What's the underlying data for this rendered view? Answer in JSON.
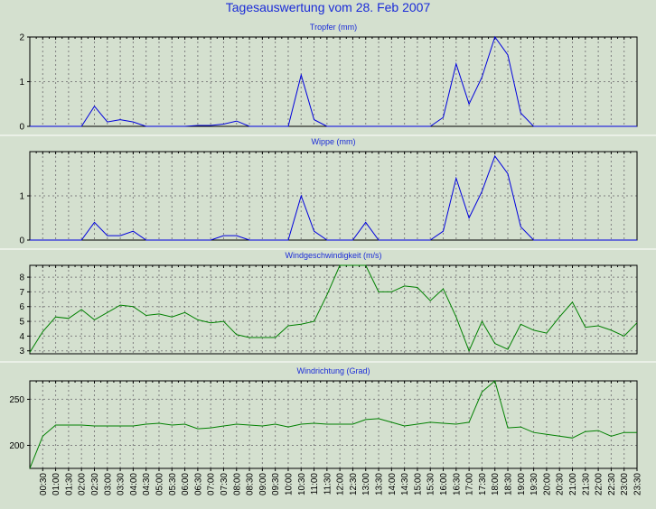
{
  "title": "Tagesauswertung vom 28. Feb 2007",
  "colors": {
    "background": "#d4e0cf",
    "plot_background": "#d4e0cf",
    "title": "#1a2bd8",
    "blue_series": "#0000dd",
    "green_series": "#008000",
    "grid": "#808080",
    "separator": "#ffffff"
  },
  "time_labels": [
    "00:30",
    "01:00",
    "01:30",
    "02:00",
    "02:30",
    "03:00",
    "03:30",
    "04:00",
    "04:30",
    "05:00",
    "05:30",
    "06:00",
    "06:30",
    "07:00",
    "07:30",
    "08:00",
    "08:30",
    "09:00",
    "09:30",
    "10:00",
    "10:30",
    "11:00",
    "11:30",
    "12:00",
    "12:30",
    "13:00",
    "13:30",
    "14:00",
    "14:30",
    "15:00",
    "15:30",
    "16:00",
    "16:30",
    "17:00",
    "17:30",
    "18:00",
    "18:30",
    "19:00",
    "19:30",
    "20:00",
    "20:30",
    "21:00",
    "21:30",
    "22:00",
    "22:30",
    "23:00",
    "23:30"
  ],
  "chart_data": [
    {
      "type": "line",
      "title": "Tropfer (mm)",
      "ylim": [
        0,
        2
      ],
      "yticks": [
        0,
        1,
        2
      ],
      "grid": true,
      "x": [
        "00:00",
        "00:30",
        "01:00",
        "01:30",
        "02:00",
        "02:30",
        "03:00",
        "03:30",
        "04:00",
        "04:30",
        "05:00",
        "05:30",
        "06:00",
        "06:30",
        "07:00",
        "07:30",
        "08:00",
        "08:30",
        "09:00",
        "09:30",
        "10:00",
        "10:30",
        "11:00",
        "11:30",
        "12:00",
        "12:30",
        "13:00",
        "13:30",
        "14:00",
        "14:30",
        "15:00",
        "15:30",
        "16:00",
        "16:30",
        "17:00",
        "17:30",
        "18:00",
        "18:30",
        "19:00",
        "19:30",
        "20:00",
        "20:30",
        "21:00",
        "21:30",
        "22:00",
        "22:30",
        "23:00",
        "23:30"
      ],
      "series": [
        {
          "values": [
            0,
            0,
            0,
            0,
            0,
            0.45,
            0.1,
            0.15,
            0.1,
            0,
            0,
            0,
            0,
            0.02,
            0.02,
            0.05,
            0.12,
            0,
            0,
            0,
            0,
            1.15,
            0.15,
            0,
            0,
            0,
            0,
            0,
            0,
            0,
            0,
            0,
            0.2,
            1.4,
            0.5,
            1.1,
            2.0,
            1.6,
            0.3,
            0,
            0,
            0,
            0,
            0,
            0,
            0,
            0,
            0
          ]
        }
      ]
    },
    {
      "type": "line",
      "title": "Wippe (mm)",
      "ylim": [
        0,
        2
      ],
      "yticks": [
        0,
        1
      ],
      "grid": true,
      "x": [
        "00:00",
        "00:30",
        "01:00",
        "01:30",
        "02:00",
        "02:30",
        "03:00",
        "03:30",
        "04:00",
        "04:30",
        "05:00",
        "05:30",
        "06:00",
        "06:30",
        "07:00",
        "07:30",
        "08:00",
        "08:30",
        "09:00",
        "09:30",
        "10:00",
        "10:30",
        "11:00",
        "11:30",
        "12:00",
        "12:30",
        "13:00",
        "13:30",
        "14:00",
        "14:30",
        "15:00",
        "15:30",
        "16:00",
        "16:30",
        "17:00",
        "17:30",
        "18:00",
        "18:30",
        "19:00",
        "19:30",
        "20:00",
        "20:30",
        "21:00",
        "21:30",
        "22:00",
        "22:30",
        "23:00",
        "23:30"
      ],
      "series": [
        {
          "values": [
            0,
            0,
            0,
            0,
            0,
            0.4,
            0.1,
            0.1,
            0.2,
            0,
            0,
            0,
            0,
            0,
            0,
            0.1,
            0.1,
            0,
            0,
            0,
            0,
            1.0,
            0.2,
            0,
            0,
            0,
            0.4,
            0,
            0,
            0,
            0,
            0,
            0.2,
            1.4,
            0.5,
            1.1,
            1.9,
            1.5,
            0.3,
            0,
            0,
            0,
            0,
            0,
            0,
            0,
            0,
            0
          ]
        }
      ]
    },
    {
      "type": "line",
      "title": "Windgeschwindigkeit (m/s)",
      "ylim": [
        2.8,
        8.8
      ],
      "yticks": [
        3,
        4,
        5,
        6,
        7,
        8
      ],
      "grid": true,
      "x": [
        "00:00",
        "00:30",
        "01:00",
        "01:30",
        "02:00",
        "02:30",
        "03:00",
        "03:30",
        "04:00",
        "04:30",
        "05:00",
        "05:30",
        "06:00",
        "06:30",
        "07:00",
        "07:30",
        "08:00",
        "08:30",
        "09:00",
        "09:30",
        "10:00",
        "10:30",
        "11:00",
        "11:30",
        "12:00",
        "12:30",
        "13:00",
        "13:30",
        "14:00",
        "14:30",
        "15:00",
        "15:30",
        "16:00",
        "16:30",
        "17:00",
        "17:30",
        "18:00",
        "18:30",
        "19:00",
        "19:30",
        "20:00",
        "20:30",
        "21:00",
        "21:30",
        "22:00",
        "22:30",
        "23:00",
        "23:30"
      ],
      "series": [
        {
          "values": [
            2.9,
            4.3,
            5.3,
            5.2,
            5.8,
            5.1,
            5.6,
            6.1,
            6.0,
            5.4,
            5.5,
            5.3,
            5.6,
            5.1,
            4.9,
            5.0,
            4.1,
            3.9,
            3.9,
            3.9,
            4.7,
            4.8,
            5.0,
            6.8,
            8.8,
            8.8,
            8.8,
            7.0,
            7.0,
            7.4,
            7.3,
            6.4,
            7.2,
            5.3,
            3.0,
            5.0,
            3.5,
            3.1,
            4.8,
            4.4,
            4.2,
            5.3,
            6.3,
            4.6,
            4.7,
            4.4,
            4.0,
            4.9
          ]
        }
      ]
    },
    {
      "type": "line",
      "title": "Windrichtung (Grad)",
      "ylim": [
        175,
        270
      ],
      "yticks": [
        200,
        250
      ],
      "grid": true,
      "x": [
        "00:00",
        "00:30",
        "01:00",
        "01:30",
        "02:00",
        "02:30",
        "03:00",
        "03:30",
        "04:00",
        "04:30",
        "05:00",
        "05:30",
        "06:00",
        "06:30",
        "07:00",
        "07:30",
        "08:00",
        "08:30",
        "09:00",
        "09:30",
        "10:00",
        "10:30",
        "11:00",
        "11:30",
        "12:00",
        "12:30",
        "13:00",
        "13:30",
        "14:00",
        "14:30",
        "15:00",
        "15:30",
        "16:00",
        "16:30",
        "17:00",
        "17:30",
        "18:00",
        "18:30",
        "19:00",
        "19:30",
        "20:00",
        "20:30",
        "21:00",
        "21:30",
        "22:00",
        "22:30",
        "23:00",
        "23:30"
      ],
      "series": [
        {
          "values": [
            175,
            210,
            222,
            222,
            222,
            221,
            221,
            221,
            221,
            223,
            224,
            222,
            223,
            218,
            219,
            221,
            223,
            222,
            221,
            223,
            220,
            223,
            224,
            223,
            223,
            223,
            228,
            229,
            225,
            221,
            223,
            225,
            224,
            223,
            225,
            258,
            270,
            219,
            220,
            214,
            212,
            210,
            208,
            215,
            216,
            210,
            214,
            214
          ]
        }
      ]
    }
  ]
}
